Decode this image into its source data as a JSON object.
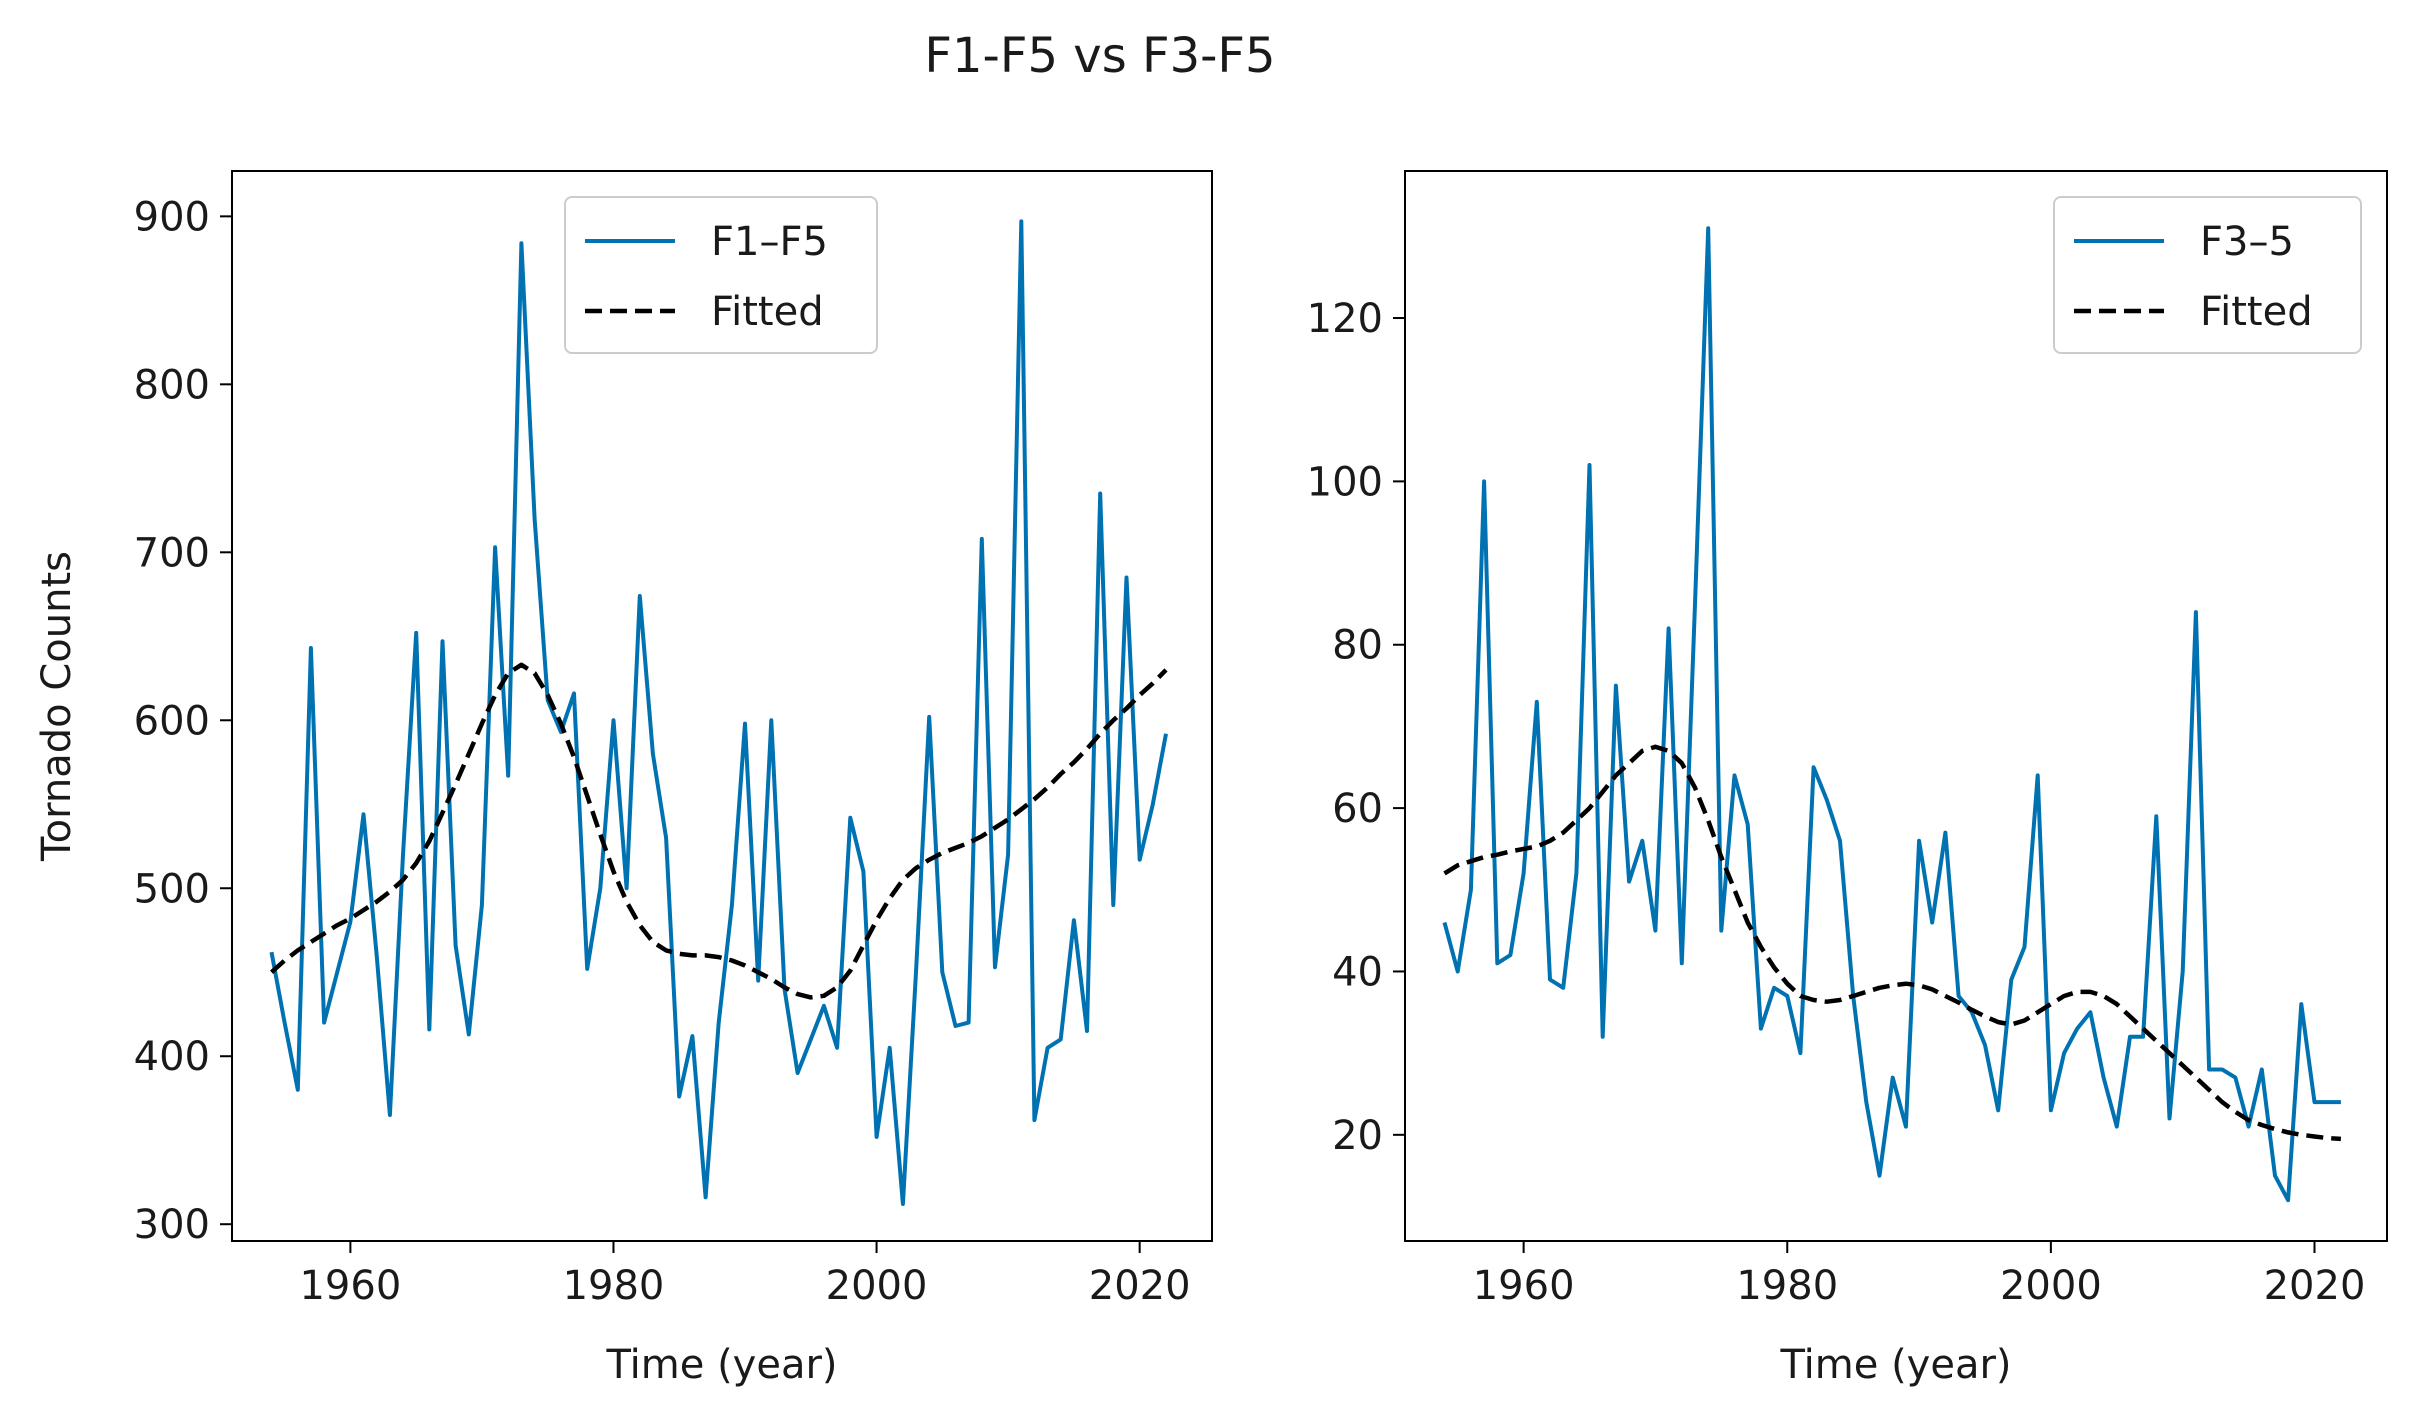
{
  "figure": {
    "suptitle": "F1-F5 vs F3-F5"
  },
  "colors": {
    "series": "#0072b2",
    "fitted": "#000000",
    "frame": "#000000",
    "background": "#ffffff"
  },
  "chart_data": [
    {
      "type": "line",
      "title": "",
      "xlabel": "Time (year)",
      "ylabel": "Tornado Counts",
      "xlim": [
        1951,
        2025.5
      ],
      "ylim": [
        290,
        927
      ],
      "xticks": [
        1960,
        1980,
        2000,
        2020
      ],
      "yticks": [
        300,
        400,
        500,
        600,
        700,
        800,
        900
      ],
      "legend": {
        "location": "upper-center",
        "entries": [
          "F1–F5",
          "Fitted"
        ]
      },
      "x": [
        1954,
        1955,
        1956,
        1957,
        1958,
        1959,
        1960,
        1961,
        1962,
        1963,
        1964,
        1965,
        1966,
        1967,
        1968,
        1969,
        1970,
        1971,
        1972,
        1973,
        1974,
        1975,
        1976,
        1977,
        1978,
        1979,
        1980,
        1981,
        1982,
        1983,
        1984,
        1985,
        1986,
        1987,
        1988,
        1989,
        1990,
        1991,
        1992,
        1993,
        1994,
        1995,
        1996,
        1997,
        1998,
        1999,
        2000,
        2001,
        2002,
        2003,
        2004,
        2005,
        2006,
        2007,
        2008,
        2009,
        2010,
        2011,
        2012,
        2013,
        2014,
        2015,
        2016,
        2017,
        2018,
        2019,
        2020,
        2021,
        2022
      ],
      "series": [
        {
          "name": "F1–F5",
          "style": "solid",
          "values": [
            462,
            420,
            380,
            643,
            420,
            450,
            480,
            544,
            460,
            365,
            520,
            652,
            416,
            647,
            466,
            413,
            490,
            703,
            567,
            884,
            720,
            612,
            593,
            616,
            452,
            500,
            600,
            500,
            674,
            580,
            530,
            376,
            412,
            316,
            420,
            490,
            598,
            445,
            600,
            440,
            390,
            410,
            430,
            405,
            542,
            510,
            352,
            405,
            312,
            450,
            602,
            450,
            418,
            420,
            708,
            453,
            520,
            897,
            362,
            405,
            410,
            481,
            415,
            735,
            490,
            685,
            517,
            550,
            592
          ]
        },
        {
          "name": "Fitted",
          "style": "dashed",
          "values": [
            450,
            457,
            463,
            468,
            473,
            478,
            482,
            487,
            492,
            498,
            505,
            515,
            528,
            545,
            562,
            580,
            598,
            615,
            628,
            633,
            628,
            615,
            598,
            578,
            555,
            532,
            510,
            492,
            478,
            468,
            463,
            461,
            460,
            460,
            459,
            457,
            454,
            450,
            446,
            441,
            437,
            435,
            436,
            441,
            451,
            466,
            481,
            494,
            505,
            512,
            517,
            521,
            524,
            527,
            531,
            536,
            541,
            547,
            553,
            560,
            568,
            575,
            583,
            592,
            600,
            607,
            615,
            622,
            630
          ]
        }
      ]
    },
    {
      "type": "line",
      "title": "",
      "xlabel": "Time (year)",
      "ylabel": "",
      "xlim": [
        1951,
        2025.5
      ],
      "ylim": [
        7,
        138
      ],
      "xticks": [
        1960,
        1980,
        2000,
        2020
      ],
      "yticks": [
        20,
        40,
        60,
        80,
        100,
        120
      ],
      "legend": {
        "location": "top-right",
        "entries": [
          "F3–5",
          "Fitted"
        ]
      },
      "x": [
        1954,
        1955,
        1956,
        1957,
        1958,
        1959,
        1960,
        1961,
        1962,
        1963,
        1964,
        1965,
        1966,
        1967,
        1968,
        1969,
        1970,
        1971,
        1972,
        1973,
        1974,
        1975,
        1976,
        1977,
        1978,
        1979,
        1980,
        1981,
        1982,
        1983,
        1984,
        1985,
        1986,
        1987,
        1988,
        1989,
        1990,
        1991,
        1992,
        1993,
        1994,
        1995,
        1996,
        1997,
        1998,
        1999,
        2000,
        2001,
        2002,
        2003,
        2004,
        2005,
        2006,
        2007,
        2008,
        2009,
        2010,
        2011,
        2012,
        2013,
        2014,
        2015,
        2016,
        2017,
        2018,
        2019,
        2020,
        2021,
        2022
      ],
      "series": [
        {
          "name": "F3–5",
          "style": "solid",
          "values": [
            46,
            40,
            50,
            100,
            41,
            42,
            52,
            73,
            39,
            38,
            52,
            102,
            32,
            75,
            51,
            56,
            45,
            82,
            41,
            85,
            131,
            45,
            64,
            58,
            33,
            38,
            37,
            30,
            65,
            61,
            56,
            37,
            24,
            15,
            27,
            21,
            56,
            46,
            57,
            37,
            35,
            31,
            23,
            39,
            43,
            64,
            23,
            30,
            33,
            35,
            27,
            21,
            32,
            32,
            59,
            22,
            40,
            84,
            28,
            28,
            27,
            21,
            28,
            15,
            12,
            36,
            24,
            24,
            24
          ]
        },
        {
          "name": "Fitted",
          "style": "dashed",
          "values": [
            52,
            53,
            53.5,
            54,
            54.3,
            54.7,
            55,
            55.3,
            56,
            57,
            58.5,
            60,
            62,
            64,
            65.5,
            67,
            67.5,
            67,
            65.5,
            62.5,
            58.5,
            54,
            50,
            46,
            43,
            40.5,
            38.5,
            37,
            36.5,
            36.3,
            36.5,
            37,
            37.5,
            38,
            38.3,
            38.5,
            38.3,
            37.8,
            37,
            36.2,
            35.3,
            34.5,
            33.8,
            33.5,
            34,
            35,
            36,
            37,
            37.5,
            37.5,
            37,
            36,
            34.5,
            33,
            31.5,
            30,
            28.5,
            27,
            25.5,
            24,
            22.8,
            21.8,
            21.2,
            20.7,
            20.3,
            20,
            19.8,
            19.6,
            19.5
          ]
        }
      ]
    }
  ]
}
